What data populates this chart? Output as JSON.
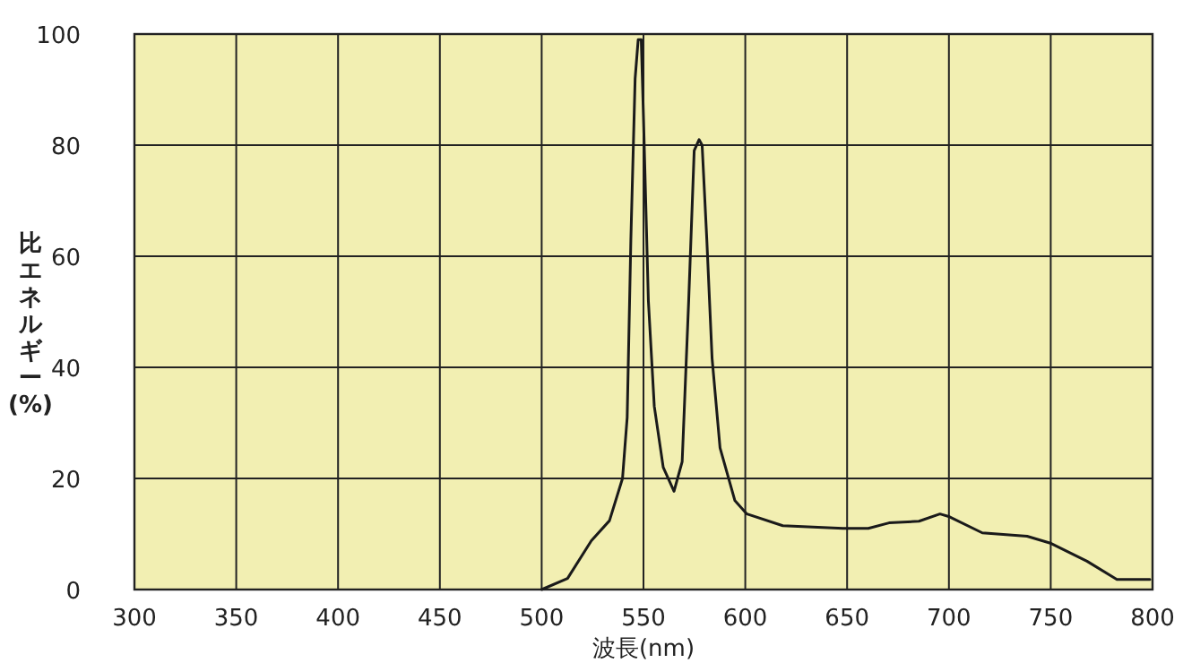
{
  "chart_data": {
    "type": "line",
    "xlabel": "波長(nm)",
    "ylabel": "比エネルギー(%)",
    "xlim": [
      300,
      800
    ],
    "xticks": [
      300,
      350,
      400,
      450,
      500,
      550,
      600,
      650,
      700,
      750,
      800
    ],
    "ylim": [
      0,
      100
    ],
    "yticks": [
      0,
      20,
      40,
      60,
      80,
      100
    ],
    "grid": true,
    "line_style": "solid",
    "series": [
      {
        "color": "#1a1a1a",
        "x": [
          500,
          512.7,
          524.4,
          533.3,
          539.7,
          542,
          543.8,
          545.9,
          547.4,
          548.9,
          550,
          552.4,
          555.3,
          559.7,
          565,
          569,
          572.2,
          574.9,
          577.3,
          578.8,
          581.1,
          583.7,
          587.6,
          594.9,
          600.8,
          618.4,
          648,
          660.4,
          670.6,
          685.3,
          695.6,
          700.3,
          716.4,
          738.4,
          750.2,
          767.8,
          782.5,
          798.7
        ],
        "values": [
          0,
          2,
          8.8,
          12.4,
          20,
          31,
          63,
          92,
          99,
          99,
          85,
          52,
          33,
          22,
          17.7,
          23,
          52,
          79,
          81,
          80,
          63,
          41.6,
          25.5,
          16,
          13.6,
          11.5,
          11,
          11,
          12,
          12.3,
          13.6,
          13.1,
          10.2,
          9.6,
          8.3,
          5.1,
          1.8,
          1.8
        ]
      }
    ]
  }
}
